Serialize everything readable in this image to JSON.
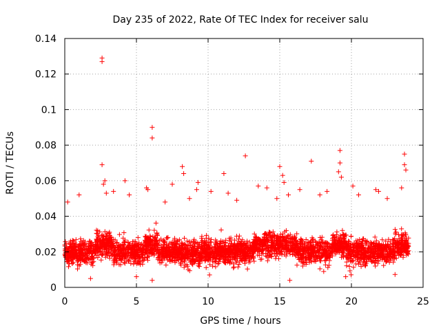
{
  "chart_data": {
    "type": "scatter",
    "title": "Day 235 of 2022, Rate Of TEC Index for receiver salu",
    "xlabel": "GPS time / hours",
    "ylabel": "ROTI / TECUs",
    "xlim": [
      0,
      25
    ],
    "ylim": [
      0,
      0.14
    ],
    "xticks": [
      0,
      5,
      10,
      15,
      20,
      25
    ],
    "yticks": [
      0,
      0.02,
      0.04,
      0.06,
      0.08,
      0.1,
      0.12,
      0.14
    ],
    "xtick_labels": [
      "0",
      "5",
      "10",
      "15",
      "20",
      "25"
    ],
    "ytick_labels": [
      "0",
      "0.02",
      "0.04",
      "0.06",
      "0.08",
      "0.1",
      "0.12",
      "0.14"
    ],
    "grid": true,
    "marker": "+",
    "color": "#ff0000",
    "series": [
      {
        "name": "ROTI",
        "description": "Dense band of ROTI values between about 0.005 and 0.045 TECU/s over 0–24 h with sparse outliers",
        "outliers": [
          {
            "x": 2.6,
            "y": 0.129
          },
          {
            "x": 2.6,
            "y": 0.127
          },
          {
            "x": 2.6,
            "y": 0.069
          },
          {
            "x": 6.1,
            "y": 0.09
          },
          {
            "x": 6.1,
            "y": 0.084
          },
          {
            "x": 12.6,
            "y": 0.074
          },
          {
            "x": 17.2,
            "y": 0.071
          },
          {
            "x": 19.2,
            "y": 0.077
          },
          {
            "x": 19.2,
            "y": 0.07
          },
          {
            "x": 23.7,
            "y": 0.075
          },
          {
            "x": 23.7,
            "y": 0.069
          },
          {
            "x": 8.2,
            "y": 0.068
          },
          {
            "x": 15.0,
            "y": 0.068
          },
          {
            "x": 23.8,
            "y": 0.066
          },
          {
            "x": 19.1,
            "y": 0.065
          },
          {
            "x": 8.3,
            "y": 0.064
          },
          {
            "x": 11.1,
            "y": 0.064
          },
          {
            "x": 15.2,
            "y": 0.063
          },
          {
            "x": 19.3,
            "y": 0.062
          },
          {
            "x": 2.8,
            "y": 0.06
          },
          {
            "x": 4.2,
            "y": 0.06
          },
          {
            "x": 9.3,
            "y": 0.059
          },
          {
            "x": 15.3,
            "y": 0.059
          },
          {
            "x": 2.7,
            "y": 0.058
          },
          {
            "x": 7.5,
            "y": 0.058
          },
          {
            "x": 13.5,
            "y": 0.057
          },
          {
            "x": 20.1,
            "y": 0.057
          },
          {
            "x": 5.7,
            "y": 0.056
          },
          {
            "x": 14.1,
            "y": 0.056
          },
          {
            "x": 23.5,
            "y": 0.056
          },
          {
            "x": 5.8,
            "y": 0.055
          },
          {
            "x": 9.2,
            "y": 0.055
          },
          {
            "x": 16.4,
            "y": 0.055
          },
          {
            "x": 21.7,
            "y": 0.055
          },
          {
            "x": 3.4,
            "y": 0.054
          },
          {
            "x": 21.9,
            "y": 0.054
          },
          {
            "x": 10.2,
            "y": 0.054
          },
          {
            "x": 18.3,
            "y": 0.054
          },
          {
            "x": 2.9,
            "y": 0.053
          },
          {
            "x": 11.4,
            "y": 0.053
          },
          {
            "x": 1.0,
            "y": 0.052
          },
          {
            "x": 15.6,
            "y": 0.052
          },
          {
            "x": 4.5,
            "y": 0.052
          },
          {
            "x": 17.8,
            "y": 0.052
          },
          {
            "x": 20.5,
            "y": 0.052
          },
          {
            "x": 0.2,
            "y": 0.048
          },
          {
            "x": 7.0,
            "y": 0.048
          },
          {
            "x": 8.7,
            "y": 0.05
          },
          {
            "x": 14.8,
            "y": 0.05
          },
          {
            "x": 22.5,
            "y": 0.05
          },
          {
            "x": 12.0,
            "y": 0.049
          },
          {
            "x": 5.0,
            "y": 0.006
          },
          {
            "x": 1.8,
            "y": 0.005
          },
          {
            "x": 6.1,
            "y": 0.004
          },
          {
            "x": 15.7,
            "y": 0.004
          },
          {
            "x": 10.1,
            "y": 0.007
          },
          {
            "x": 19.6,
            "y": 0.006
          }
        ]
      }
    ]
  }
}
